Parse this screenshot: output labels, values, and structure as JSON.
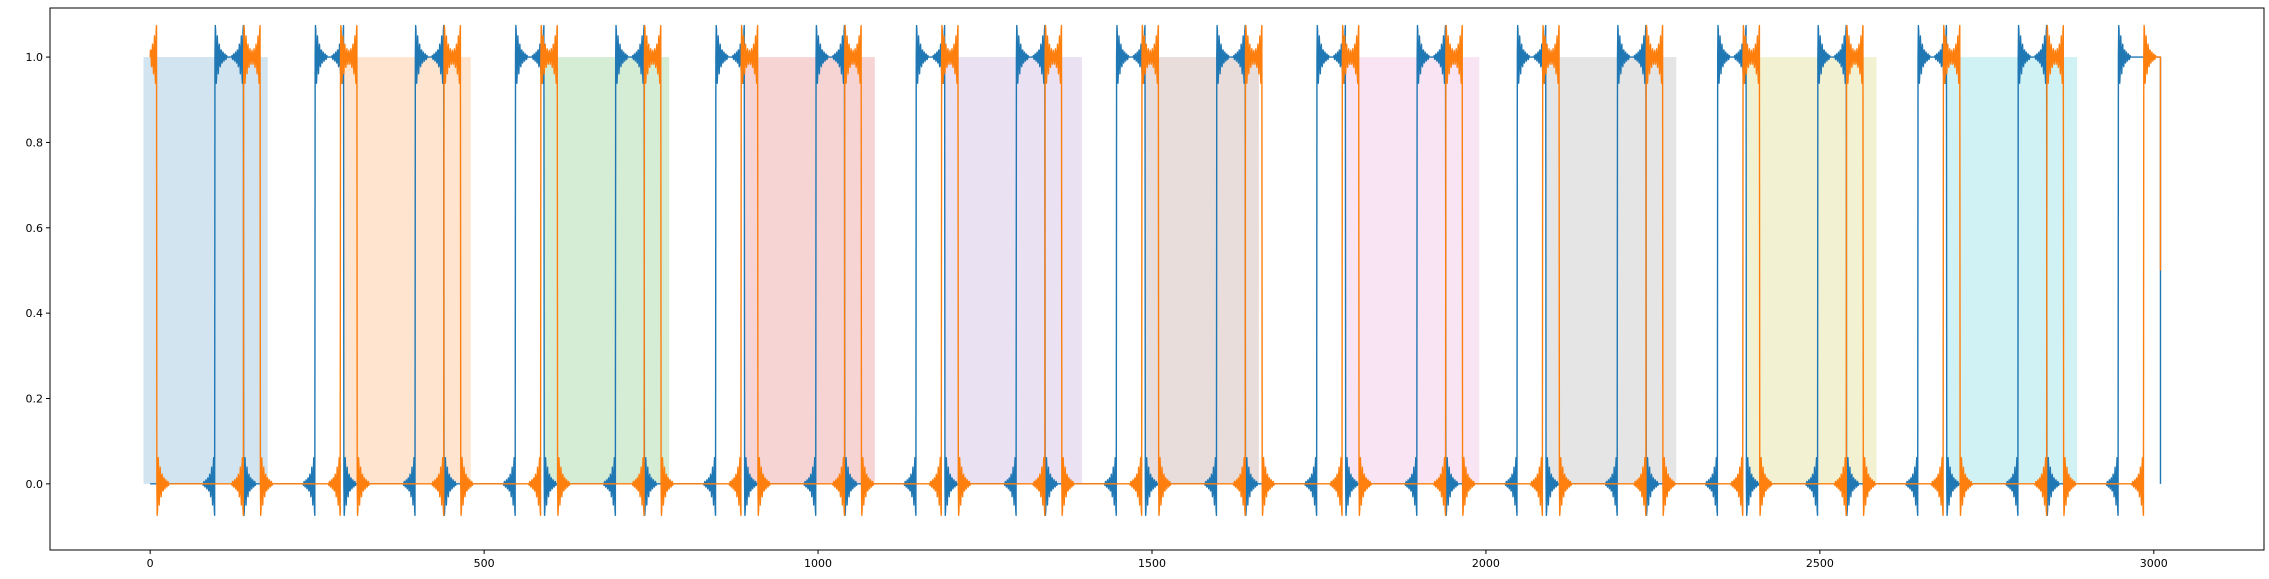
{
  "chart_data": {
    "type": "line",
    "title": "",
    "xlabel": "",
    "ylabel": "",
    "xlim": [
      -150,
      3165
    ],
    "ylim": [
      -0.155,
      1.115
    ],
    "x_ticks": [
      0,
      500,
      1000,
      1500,
      2000,
      2500,
      3000
    ],
    "x_tick_labels": [
      "0",
      "500",
      "1000",
      "1500",
      "2000",
      "2500",
      "3000"
    ],
    "y_ticks": [
      0.0,
      0.2,
      0.4,
      0.6,
      0.8,
      1.0
    ],
    "y_tick_labels": [
      "0.0",
      "0.2",
      "0.4",
      "0.6",
      "0.8",
      "1.0"
    ],
    "grid": false,
    "legend": "none",
    "shaded_regions": [
      {
        "x_start": -10,
        "x_end": 176,
        "y_start": 0,
        "y_end": 1,
        "color": "#1f77b4"
      },
      {
        "x_start": 290,
        "x_end": 480,
        "y_start": 0,
        "y_end": 1,
        "color": "#ff7f0e"
      },
      {
        "x_start": 590,
        "x_end": 777,
        "y_start": 0,
        "y_end": 1,
        "color": "#2ca02c"
      },
      {
        "x_start": 890,
        "x_end": 1085,
        "y_start": 0,
        "y_end": 1,
        "color": "#d62728"
      },
      {
        "x_start": 1190,
        "x_end": 1395,
        "y_start": 0,
        "y_end": 1,
        "color": "#9467bd"
      },
      {
        "x_start": 1490,
        "x_end": 1660,
        "y_start": 0,
        "y_end": 1,
        "color": "#8c564b"
      },
      {
        "x_start": 1790,
        "x_end": 1990,
        "y_start": 0,
        "y_end": 1,
        "color": "#e377c2"
      },
      {
        "x_start": 2090,
        "x_end": 2285,
        "y_start": 0,
        "y_end": 1,
        "color": "#7f7f7f"
      },
      {
        "x_start": 2390,
        "x_end": 2585,
        "y_start": 0,
        "y_end": 1,
        "color": "#bcbd22"
      },
      {
        "x_start": 2690,
        "x_end": 2885,
        "y_start": 0,
        "y_end": 1,
        "color": "#17becf"
      }
    ],
    "series": [
      {
        "color": "#1f77b4",
        "x_range": [
          0,
          3010
        ],
        "period": 300,
        "phase_offset": 0,
        "levels": [
          0,
          1
        ],
        "transitions": [
          {
            "x": 97,
            "to": 1
          },
          {
            "x": 140,
            "to": 0
          },
          {
            "x": 247,
            "to": 1
          },
          {
            "x": 290,
            "to": 0
          },
          {
            "x": 397,
            "to": 1
          },
          {
            "x": 440,
            "to": 0
          },
          {
            "x": 547,
            "to": 1
          },
          {
            "x": 590,
            "to": 0
          },
          {
            "x": 697,
            "to": 1
          },
          {
            "x": 740,
            "to": 0
          },
          {
            "x": 847,
            "to": 1
          },
          {
            "x": 890,
            "to": 0
          },
          {
            "x": 997,
            "to": 1
          },
          {
            "x": 1040,
            "to": 0
          },
          {
            "x": 1147,
            "to": 1
          },
          {
            "x": 1190,
            "to": 0
          },
          {
            "x": 1297,
            "to": 1
          },
          {
            "x": 1340,
            "to": 0
          },
          {
            "x": 1447,
            "to": 1
          },
          {
            "x": 1490,
            "to": 0
          },
          {
            "x": 1597,
            "to": 1
          },
          {
            "x": 1640,
            "to": 0
          },
          {
            "x": 1747,
            "to": 1
          },
          {
            "x": 1790,
            "to": 0
          },
          {
            "x": 1897,
            "to": 1
          },
          {
            "x": 1940,
            "to": 0
          },
          {
            "x": 2047,
            "to": 1
          },
          {
            "x": 2090,
            "to": 0
          },
          {
            "x": 2197,
            "to": 1
          },
          {
            "x": 2240,
            "to": 0
          },
          {
            "x": 2347,
            "to": 1
          },
          {
            "x": 2390,
            "to": 0
          },
          {
            "x": 2497,
            "to": 1
          },
          {
            "x": 2540,
            "to": 0
          },
          {
            "x": 2647,
            "to": 1
          },
          {
            "x": 2690,
            "to": 0
          },
          {
            "x": 2797,
            "to": 1
          },
          {
            "x": 2840,
            "to": 0
          },
          {
            "x": 2947,
            "to": 1
          }
        ],
        "start_level": 0,
        "end_value": 0.0
      },
      {
        "color": "#ff7f0e",
        "x_range": [
          0,
          3010
        ],
        "levels": [
          0,
          1
        ],
        "transitions": [
          {
            "x": 10,
            "to": 0
          },
          {
            "x": 140,
            "to": 1
          },
          {
            "x": 165,
            "to": 0
          },
          {
            "x": 285,
            "to": 1
          },
          {
            "x": 310,
            "to": 0
          },
          {
            "x": 440,
            "to": 1
          },
          {
            "x": 465,
            "to": 0
          },
          {
            "x": 585,
            "to": 1
          },
          {
            "x": 610,
            "to": 0
          },
          {
            "x": 740,
            "to": 1
          },
          {
            "x": 765,
            "to": 0
          },
          {
            "x": 885,
            "to": 1
          },
          {
            "x": 910,
            "to": 0
          },
          {
            "x": 1040,
            "to": 1
          },
          {
            "x": 1065,
            "to": 0
          },
          {
            "x": 1185,
            "to": 1
          },
          {
            "x": 1210,
            "to": 0
          },
          {
            "x": 1340,
            "to": 1
          },
          {
            "x": 1365,
            "to": 0
          },
          {
            "x": 1485,
            "to": 1
          },
          {
            "x": 1510,
            "to": 0
          },
          {
            "x": 1640,
            "to": 1
          },
          {
            "x": 1665,
            "to": 0
          },
          {
            "x": 1785,
            "to": 1
          },
          {
            "x": 1810,
            "to": 0
          },
          {
            "x": 1940,
            "to": 1
          },
          {
            "x": 1965,
            "to": 0
          },
          {
            "x": 2085,
            "to": 1
          },
          {
            "x": 2110,
            "to": 0
          },
          {
            "x": 2240,
            "to": 1
          },
          {
            "x": 2265,
            "to": 0
          },
          {
            "x": 2385,
            "to": 1
          },
          {
            "x": 2410,
            "to": 0
          },
          {
            "x": 2540,
            "to": 1
          },
          {
            "x": 2565,
            "to": 0
          },
          {
            "x": 2685,
            "to": 1
          },
          {
            "x": 2710,
            "to": 0
          },
          {
            "x": 2840,
            "to": 1
          },
          {
            "x": 2865,
            "to": 0
          },
          {
            "x": 2985,
            "to": 1
          }
        ],
        "start_level": 1,
        "end_value": 0.5
      }
    ]
  }
}
